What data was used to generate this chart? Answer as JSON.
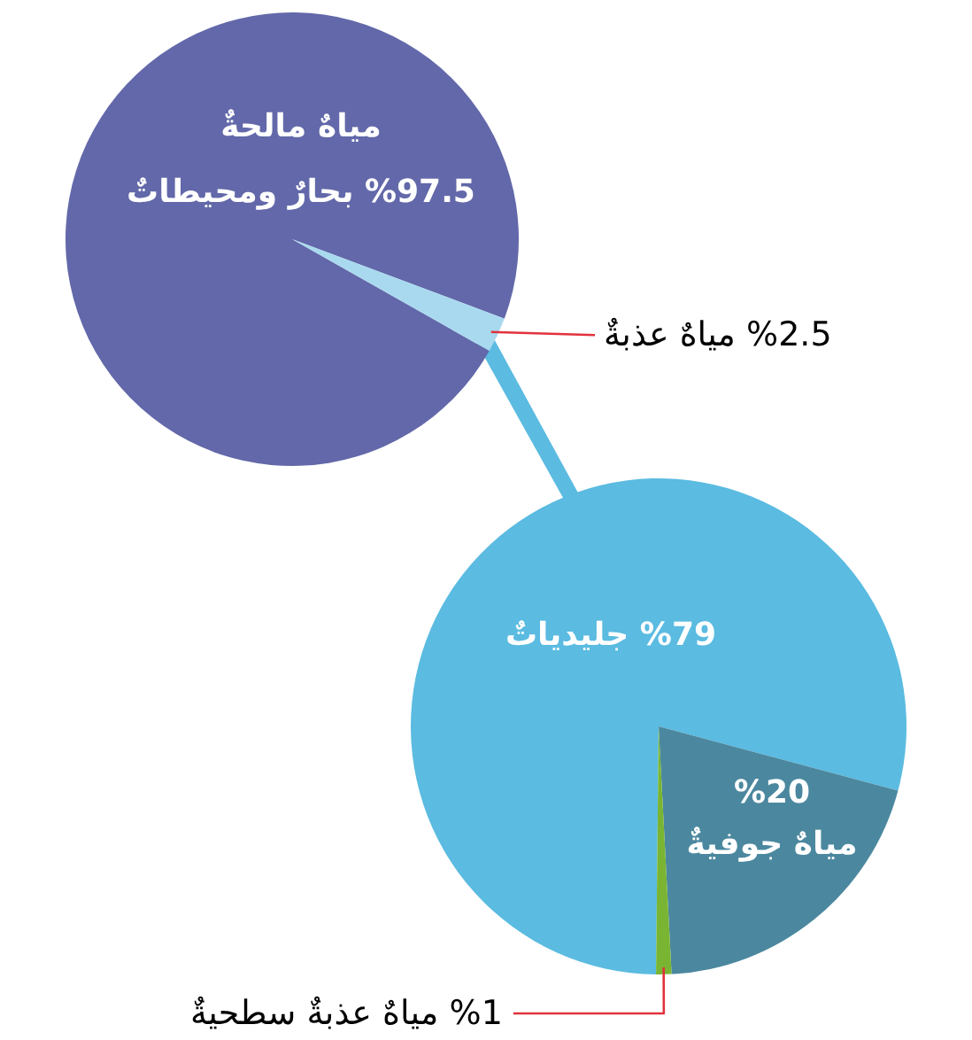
{
  "chart_data": [
    {
      "type": "pie",
      "categories": [
        "بحارٌ ومحيطاتٌ",
        "مياهٌ عذبةٌ"
      ],
      "values": [
        97.5,
        2.5
      ],
      "colors": [
        "#6268a9",
        "#a9d9ee"
      ],
      "value_labels": [
        "%97.5",
        "%2.5"
      ],
      "annotations": [
        "مياهٌ مالحةٌ"
      ]
    },
    {
      "type": "pie",
      "categories": [
        "جليدياتٌ",
        "مياهٌ جوفيةٌ",
        "مياهٌ عذبةٌ سطحيةٌ"
      ],
      "values": [
        79,
        20,
        1
      ],
      "colors": [
        "#5bbbe1",
        "#4b889f",
        "#79b532"
      ],
      "value_labels": [
        "%79",
        "%20",
        "%1"
      ]
    }
  ]
}
